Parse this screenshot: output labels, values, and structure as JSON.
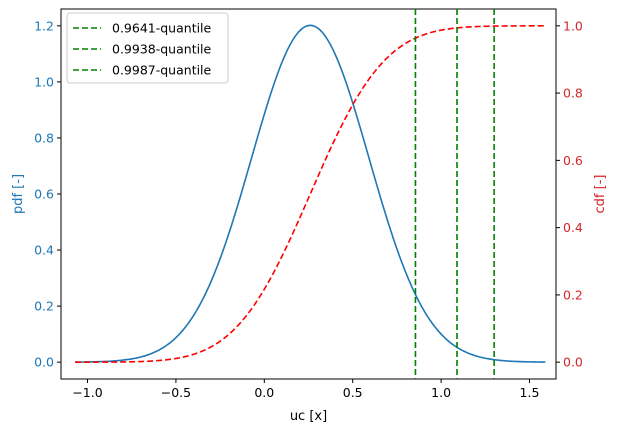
{
  "chart_data": {
    "type": "line",
    "xlabel": "uc [x]",
    "ylabel_left": "pdf [-]",
    "ylabel_right": "cdf [-]",
    "xlim": [
      -1.15,
      1.65
    ],
    "ylim_left": [
      -0.06,
      1.26
    ],
    "ylim_right": [
      -0.05,
      1.05
    ],
    "xticks": [
      -1.0,
      -0.5,
      0.0,
      0.5,
      1.0,
      1.5
    ],
    "xtick_labels": [
      "−1.0",
      "−0.5",
      "0.0",
      "0.5",
      "1.0",
      "1.5"
    ],
    "yticks_left": [
      0.0,
      0.2,
      0.4,
      0.6,
      0.8,
      1.0,
      1.2
    ],
    "ytick_labels_left": [
      "0.0",
      "0.2",
      "0.4",
      "0.6",
      "0.8",
      "1.0",
      "1.2"
    ],
    "yticks_right": [
      0.0,
      0.2,
      0.4,
      0.6,
      0.8,
      1.0
    ],
    "ytick_labels_right": [
      "0.0",
      "0.2",
      "0.4",
      "0.6",
      "0.8",
      "1.0"
    ],
    "series": [
      {
        "name": "pdf",
        "axis": "left",
        "style": "solid",
        "color": "#1f77b4",
        "distribution": {
          "kind": "normal",
          "mean": 0.26,
          "std": 0.332
        },
        "x_range": [
          -1.07,
          1.59
        ]
      },
      {
        "name": "cdf",
        "axis": "right",
        "style": "dashed",
        "color": "#ff0000",
        "distribution": {
          "kind": "normal",
          "mean": 0.26,
          "std": 0.332
        },
        "x_range": [
          -1.07,
          1.59
        ]
      }
    ],
    "vlines": [
      {
        "label": "0.9641-quantile",
        "x": 0.855,
        "color": "#008000"
      },
      {
        "label": "0.9938-quantile",
        "x": 1.09,
        "color": "#008000"
      },
      {
        "label": "0.9987-quantile",
        "x": 1.3,
        "color": "#008000"
      }
    ],
    "legend_position": "upper-left",
    "colors": {
      "left_axis": "#1f77b4",
      "right_axis": "#d62728",
      "quantile": "#008000"
    }
  }
}
